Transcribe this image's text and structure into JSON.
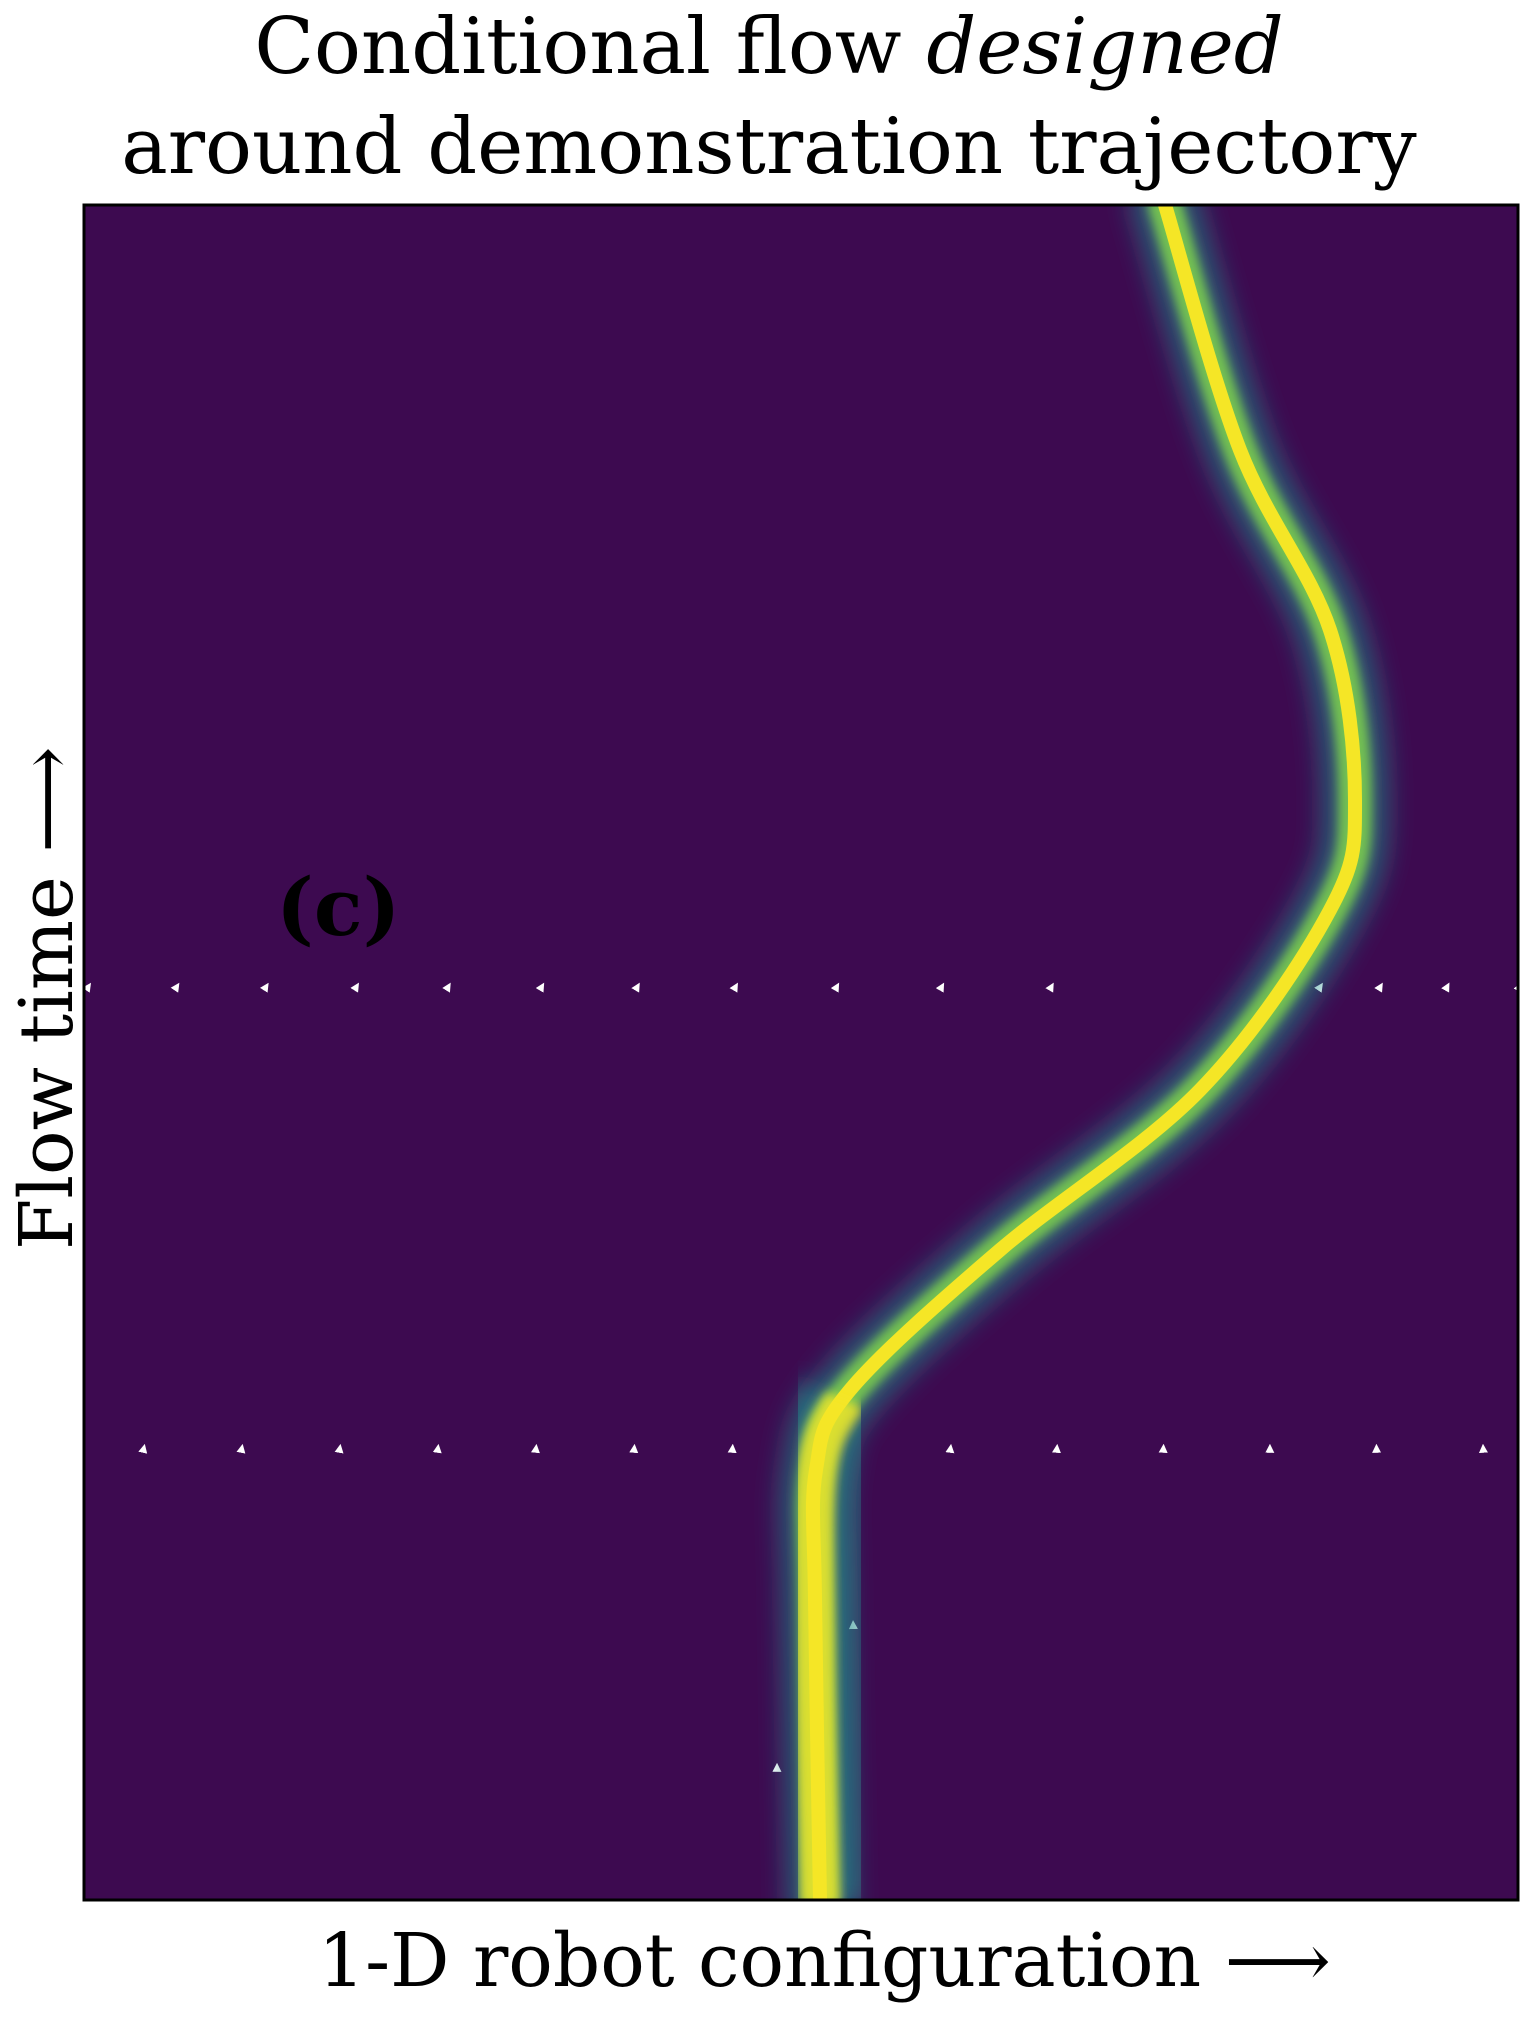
{
  "figure": {
    "title_line1": "Conditional flow",
    "title_emph": "designed",
    "title_line2": "around demonstration trajectory",
    "panel_label": "(c)",
    "y_axis_label": "Flow time",
    "x_axis_label": "1-D robot configuration",
    "arrow_glyph": "⟶",
    "colors": {
      "background": "#3d0a50",
      "streamline": "#ffffff",
      "trajectory_core": "#f5e626",
      "trajectory_mid": "#7fd34e",
      "trajectory_edge": "#21908d"
    },
    "colormap": "viridis"
  }
}
